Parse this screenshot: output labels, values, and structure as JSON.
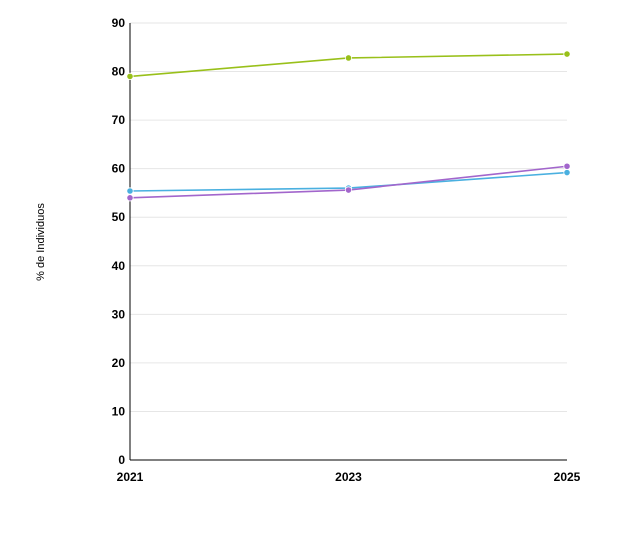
{
  "chart_data": {
    "type": "line",
    "title": "",
    "xlabel": "",
    "ylabel": "% de Individuos",
    "x": [
      "2021",
      "2023",
      "2025"
    ],
    "ylim": [
      0,
      90
    ],
    "yticks": [
      0,
      10,
      20,
      30,
      40,
      50,
      60,
      70,
      80,
      90
    ],
    "grid": true,
    "legend": "none",
    "series": [
      {
        "color": "#99c01a",
        "values": [
          79.0,
          82.8,
          83.6
        ]
      },
      {
        "color": "#4ab0e0",
        "values": [
          55.4,
          56.0,
          59.2
        ]
      },
      {
        "color": "#a266cc",
        "values": [
          54.0,
          55.6,
          60.5
        ]
      }
    ]
  }
}
